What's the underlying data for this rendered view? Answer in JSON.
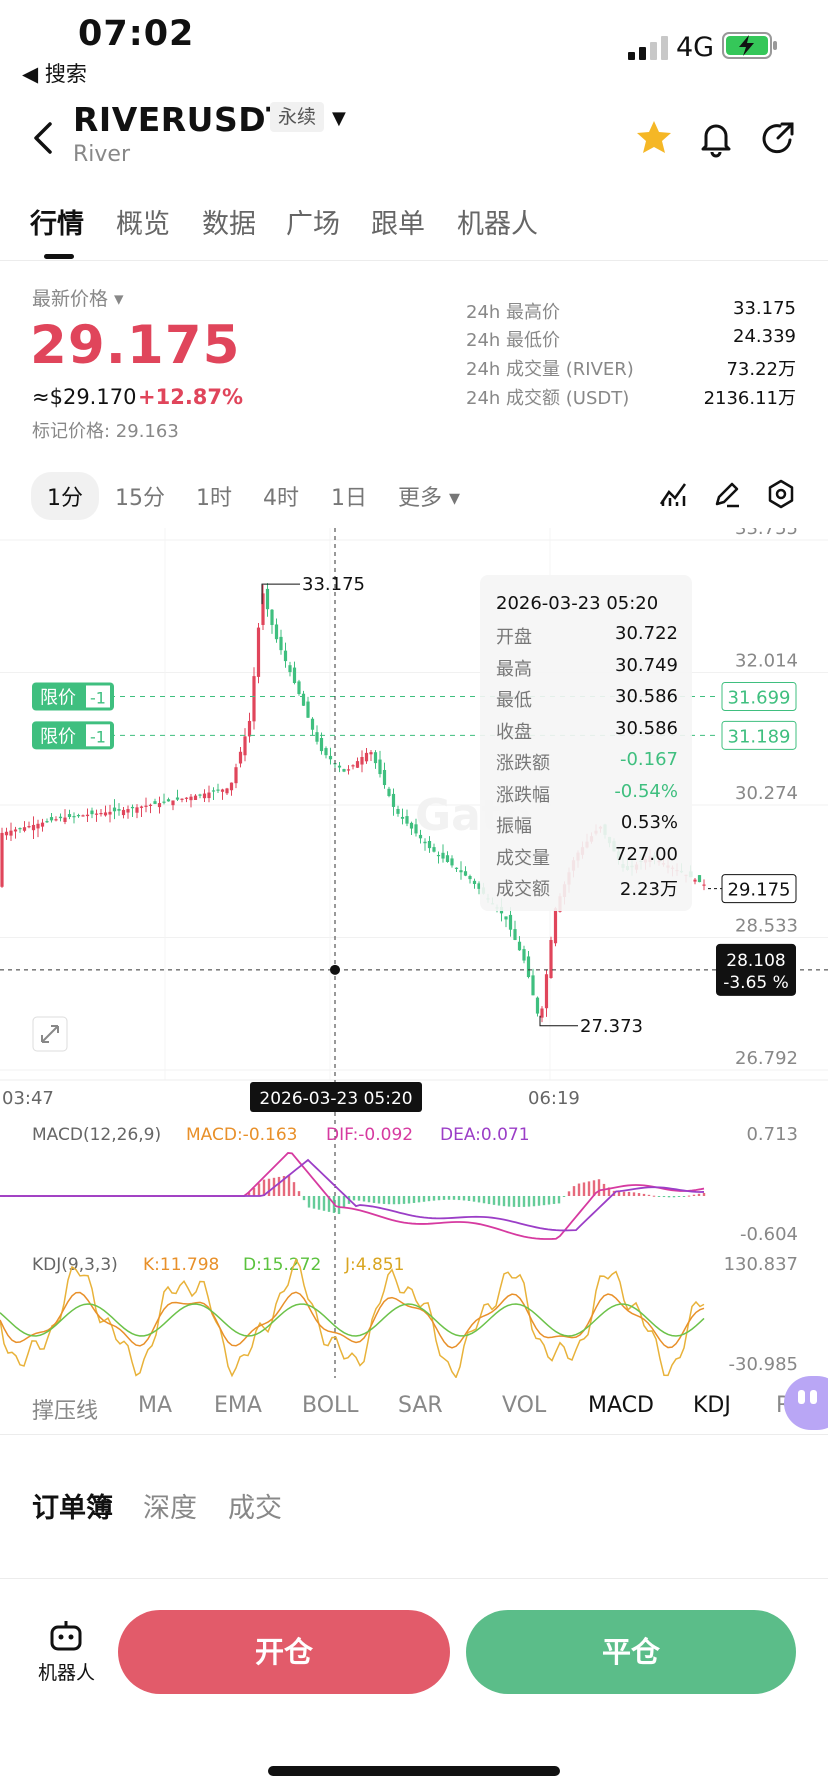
{
  "status": {
    "time": "07:02",
    "back_label": "◀ 搜索",
    "network": "4G"
  },
  "header": {
    "symbol": "RIVERUSDT",
    "badge": "永续",
    "subname": "River"
  },
  "tabs": [
    "行情",
    "概览",
    "数据",
    "广场",
    "跟单",
    "机器人"
  ],
  "price": {
    "latest_label": "最新价格 ▾",
    "last": "29.175",
    "usd": "≈$29.170",
    "change": "+12.87%",
    "mark": "标记价格: 29.163"
  },
  "stats": [
    {
      "label": "24h 最高价",
      "value": "33.175"
    },
    {
      "label": "24h 最低价",
      "value": "24.339"
    },
    {
      "label": "24h 成交量 (RIVER)",
      "value": "73.22万"
    },
    {
      "label": "24h 成交额 (USDT)",
      "value": "2136.11万"
    }
  ],
  "timeframes": [
    "1分",
    "15分",
    "1时",
    "4时",
    "1日",
    "更多 ▾"
  ],
  "chart": {
    "y_ticks": [
      "33.755",
      "32.014",
      "30.274",
      "28.533",
      "26.792"
    ],
    "x_ticks": [
      "03:47",
      "06:19"
    ],
    "high_label": "33.175",
    "low_label": "27.373",
    "limit_label": "限价",
    "limit_qty": "-1",
    "limit_prices": [
      "31.699",
      "31.189"
    ],
    "last_tag": "29.175",
    "cursor_price": "28.108",
    "cursor_pct": "-3.65 %",
    "cursor_time": "2026-03-23 05:20",
    "colors": {
      "up": "#e0455b",
      "down": "#3fbf7f",
      "macd": "#e8902a",
      "dif": "#d63aa0",
      "dea": "#9b3ec7"
    }
  },
  "tooltip": {
    "time": "2026-03-23 05:20",
    "rows": [
      {
        "k": "开盘",
        "v": "30.722"
      },
      {
        "k": "最高",
        "v": "30.749"
      },
      {
        "k": "最低",
        "v": "30.586"
      },
      {
        "k": "收盘",
        "v": "30.586"
      },
      {
        "k": "涨跌额",
        "v": "-0.167"
      },
      {
        "k": "涨跌幅",
        "v": "-0.54%"
      },
      {
        "k": "振幅",
        "v": "0.53%"
      },
      {
        "k": "成交量",
        "v": "727.00"
      },
      {
        "k": "成交额",
        "v": "2.23万"
      }
    ]
  },
  "macd": {
    "title": "MACD(12,26,9)",
    "macd": "MACD:-0.163",
    "dif": "DIF:-0.092",
    "dea": "DEA:0.071",
    "top": "0.713",
    "bottom": "-0.604"
  },
  "kdj": {
    "title": "KDJ(9,3,3)",
    "k": "K:11.798",
    "d": "D:15.272",
    "j": "J:4.851",
    "top": "130.837",
    "bottom": "-30.985"
  },
  "indicators": [
    "撑压线",
    "MA",
    "EMA",
    "BOLL",
    "SAR",
    "VOL",
    "MACD",
    "KDJ",
    "RSI"
  ],
  "orderbook_tabs": [
    "订单簿",
    "深度",
    "成交"
  ],
  "bottom": {
    "robot": "机器人",
    "open": "开仓",
    "close": "平仓"
  }
}
